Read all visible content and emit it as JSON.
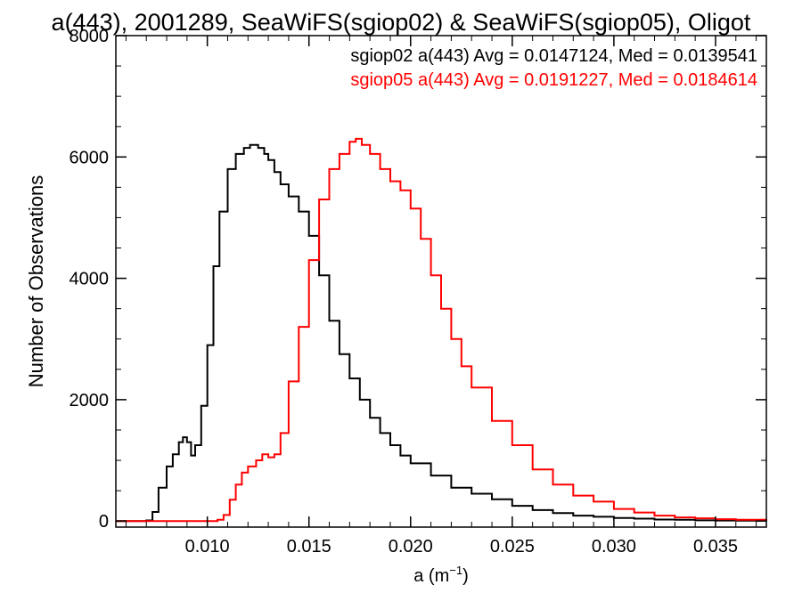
{
  "chart_data": {
    "type": "line",
    "title": "a(443), 2001289, SeaWiFS(sgiop02) & SeaWiFS(sgiop05), Oligot",
    "xlabel_base": "a (m",
    "xlabel_sup": "−1",
    "xlabel_end": ")",
    "ylabel": "Number of Observations",
    "xlim": [
      0.0055,
      0.0375
    ],
    "ylim": [
      -100,
      8000
    ],
    "x_ticks": [
      0.01,
      0.015,
      0.02,
      0.025,
      0.03,
      0.035
    ],
    "x_tick_labels": [
      "0.010",
      "0.015",
      "0.020",
      "0.025",
      "0.030",
      "0.035"
    ],
    "y_ticks": [
      0,
      2000,
      4000,
      6000,
      8000
    ],
    "y_tick_labels": [
      "0",
      "2000",
      "4000",
      "6000",
      "8000"
    ],
    "grid": false,
    "legend_position": "top-right",
    "legend": [
      "sgiop02 a(443) Avg = 0.0147124, Med = 0.0139541",
      "sgiop05 a(443) Avg = 0.0191227, Med = 0.0184614"
    ],
    "series": [
      {
        "name": "sgiop02 a(443)",
        "color": "#000000",
        "x": [
          0.0055,
          0.0065,
          0.007,
          0.0073,
          0.0076,
          0.008,
          0.0083,
          0.0086,
          0.0088,
          0.009,
          0.0092,
          0.0094,
          0.0097,
          0.01,
          0.0103,
          0.0106,
          0.011,
          0.0114,
          0.0118,
          0.0121,
          0.0123,
          0.0125,
          0.0128,
          0.013,
          0.0133,
          0.0136,
          0.014,
          0.0145,
          0.015,
          0.0155,
          0.016,
          0.0165,
          0.017,
          0.0175,
          0.018,
          0.0185,
          0.019,
          0.0195,
          0.02,
          0.021,
          0.022,
          0.023,
          0.024,
          0.025,
          0.026,
          0.027,
          0.028,
          0.029,
          0.03,
          0.031,
          0.032,
          0.033,
          0.034,
          0.035,
          0.036,
          0.0375
        ],
        "y": [
          0,
          0,
          10,
          150,
          550,
          900,
          1100,
          1300,
          1380,
          1300,
          1080,
          1250,
          1900,
          2900,
          4200,
          5100,
          5800,
          6050,
          6150,
          6200,
          6200,
          6150,
          6050,
          5950,
          5750,
          5550,
          5350,
          5100,
          4700,
          4050,
          3300,
          2750,
          2350,
          2000,
          1700,
          1450,
          1250,
          1080,
          950,
          750,
          550,
          450,
          360,
          250,
          180,
          130,
          90,
          70,
          50,
          40,
          25,
          20,
          12,
          8,
          5,
          0
        ]
      },
      {
        "name": "sgiop05 a(443)",
        "color": "#ff0000",
        "x": [
          0.0055,
          0.01,
          0.0105,
          0.0108,
          0.0111,
          0.0114,
          0.0117,
          0.012,
          0.0124,
          0.0127,
          0.013,
          0.0133,
          0.0136,
          0.014,
          0.0145,
          0.015,
          0.0155,
          0.016,
          0.0165,
          0.017,
          0.0173,
          0.0176,
          0.018,
          0.0185,
          0.019,
          0.0195,
          0.02,
          0.0205,
          0.021,
          0.0215,
          0.022,
          0.0225,
          0.023,
          0.024,
          0.025,
          0.026,
          0.027,
          0.028,
          0.029,
          0.03,
          0.031,
          0.032,
          0.033,
          0.034,
          0.035,
          0.036,
          0.0375
        ],
        "y": [
          0,
          0,
          20,
          100,
          350,
          600,
          800,
          900,
          1000,
          1100,
          1050,
          1100,
          1450,
          2300,
          3200,
          4300,
          5300,
          5800,
          6050,
          6250,
          6300,
          6200,
          6050,
          5800,
          5600,
          5450,
          5150,
          4650,
          4050,
          3500,
          3000,
          2550,
          2200,
          1650,
          1250,
          850,
          600,
          420,
          320,
          200,
          140,
          90,
          60,
          45,
          30,
          20,
          10
        ]
      }
    ]
  }
}
